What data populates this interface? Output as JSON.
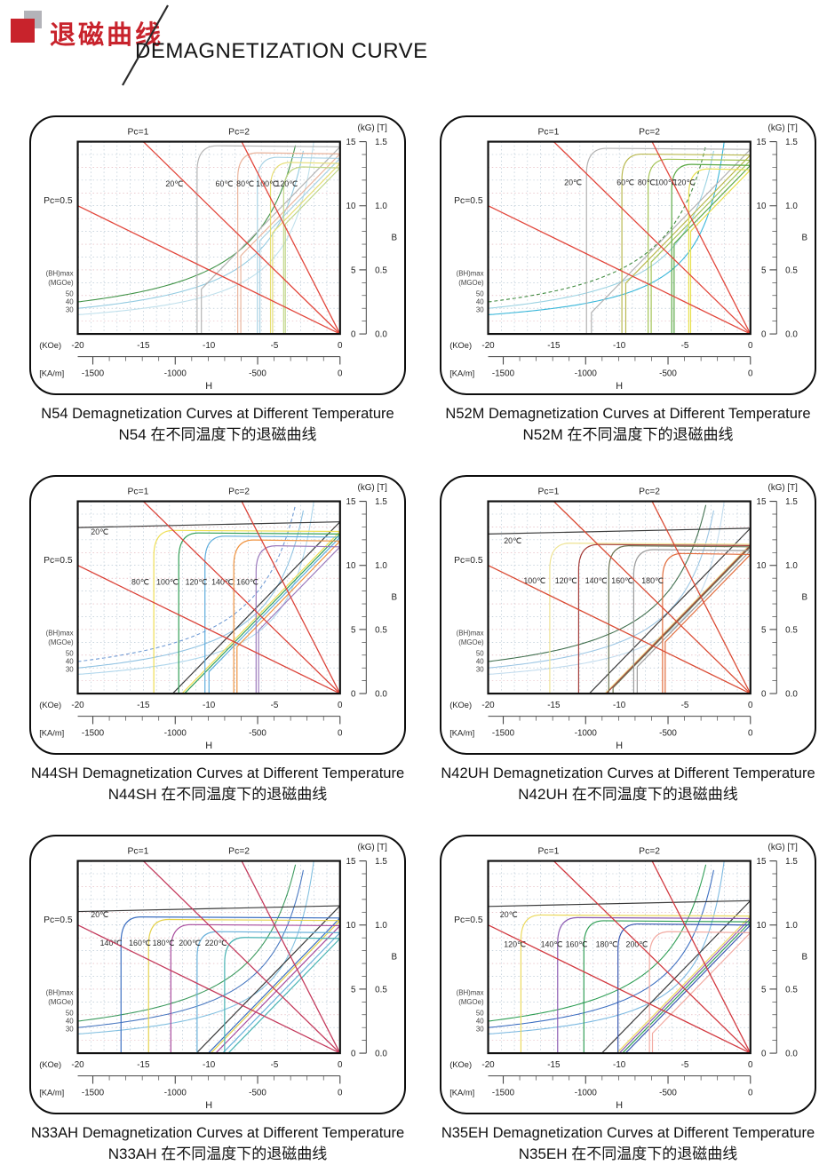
{
  "header": {
    "title_zh": "退磁曲线",
    "title_en": "DEMAGNETIZATION CURVE",
    "brand_red": "#c8232c",
    "logo_shadow_gray": "#b3b3b9"
  },
  "axis": {
    "x_title": "H",
    "y_title": "B",
    "x_unit_primary": "(KOe)",
    "x_unit_secondary": "[KA/m]",
    "y_unit_primary": "(kG)",
    "y_unit_secondary": "[T]",
    "pc_label_05": "Pc=0.5",
    "pc_label_1": "Pc=1",
    "pc_label_2": "Pc=2",
    "bhmax_label_line1": "(BH)max",
    "bhmax_label_line2": "(MGOe)"
  },
  "chart_data": [
    {
      "type": "line",
      "grade": "N54",
      "title": "N54 Demagnetization Curves at Different Temperature",
      "title_zh": "N54 在不同温度下的退磁曲线",
      "xlabel": "H",
      "ylabel": "B",
      "xlim": [
        -20,
        0
      ],
      "ylim": [
        0,
        15
      ],
      "grid": true,
      "x_ticks_koe": [
        -20,
        -15,
        -10,
        -5,
        0
      ],
      "x_ticks_kam": [
        -1500,
        -1000,
        -500,
        0
      ],
      "y_ticks_kg": [
        15,
        10,
        5,
        0
      ],
      "y_ticks_t": [
        "1.5",
        "1.0",
        "0.5",
        "0.0"
      ],
      "pc_lines": [
        0.5,
        1,
        2
      ],
      "pc_color": "#e2463b",
      "bhmax_contours_mgoe": [
        50,
        40,
        30
      ],
      "bhmax_colors": [
        "#3f9246",
        "#93cbe1",
        "#bfe0ec"
      ],
      "bhmax_dash": [
        false,
        false,
        false
      ],
      "series": [
        {
          "label": "20℃",
          "temp_c": 20,
          "color": "#b4b4b4",
          "Br_kG": 14.6,
          "HcJ_kOe": 10.9,
          "label_pos": [
            -13.3,
            11.5
          ]
        },
        {
          "label": "60℃",
          "temp_c": 60,
          "color": "#eab49c",
          "Br_kG": 14.05,
          "HcJ_kOe": 7.8,
          "label_pos": [
            -9.5,
            11.5
          ]
        },
        {
          "label": "80℃",
          "temp_c": 80,
          "color": "#a9d2e4",
          "Br_kG": 13.7,
          "HcJ_kOe": 6.3,
          "label_pos": [
            -7.9,
            11.5
          ]
        },
        {
          "label": "100℃",
          "temp_c": 100,
          "color": "#e6de74",
          "Br_kG": 13.3,
          "HcJ_kOe": 5.3,
          "label_pos": [
            -6.4,
            11.5
          ]
        },
        {
          "label": "120℃",
          "temp_c": 120,
          "color": "#c0d687",
          "Br_kG": 12.95,
          "HcJ_kOe": 4.3,
          "label_pos": [
            -4.9,
            11.5
          ]
        }
      ]
    },
    {
      "type": "line",
      "grade": "N52M",
      "title": "N52M Demagnetization Curves at Different Temperature",
      "title_zh": "N52M 在不同温度下的退磁曲线",
      "xlabel": "H",
      "ylabel": "B",
      "xlim": [
        -20,
        0
      ],
      "ylim": [
        0,
        15
      ],
      "grid": true,
      "x_ticks_koe": [
        -20,
        -15,
        -10,
        -5,
        0
      ],
      "x_ticks_kam": [
        -1500,
        -1000,
        -500,
        0
      ],
      "y_ticks_kg": [
        15,
        10,
        5,
        0
      ],
      "y_ticks_t": [
        "1.5",
        "1.0",
        "0.5",
        "0.0"
      ],
      "pc_lines": [
        0.5,
        1,
        2
      ],
      "pc_color": "#e2463b",
      "bhmax_contours_mgoe": [
        50,
        40,
        30
      ],
      "bhmax_colors": [
        "#3f8a3f",
        "#9ad2e2",
        "#35b5d8"
      ],
      "bhmax_dash": [
        true,
        false,
        false
      ],
      "series": [
        {
          "label": "20℃",
          "temp_c": 20,
          "color": "#b2b2b2",
          "Br_kG": 14.4,
          "HcJ_kOe": 12.5,
          "label_pos": [
            -14.2,
            11.6
          ]
        },
        {
          "label": "60℃",
          "temp_c": 60,
          "color": "#b8b84e",
          "Br_kG": 13.95,
          "HcJ_kOe": 9.8,
          "label_pos": [
            -10.2,
            11.6
          ]
        },
        {
          "label": "80℃",
          "temp_c": 80,
          "color": "#a3c355",
          "Br_kG": 13.55,
          "HcJ_kOe": 7.8,
          "label_pos": [
            -8.6,
            11.6
          ]
        },
        {
          "label": "100℃",
          "temp_c": 100,
          "color": "#5aa844",
          "Br_kG": 13.15,
          "HcJ_kOe": 6.0,
          "label_pos": [
            -7.3,
            11.6
          ]
        },
        {
          "label": "120℃",
          "temp_c": 120,
          "color": "#e7e04e",
          "Br_kG": 12.8,
          "HcJ_kOe": 4.7,
          "label_pos": [
            -5.9,
            11.6
          ]
        }
      ]
    },
    {
      "type": "line",
      "grade": "N44SH",
      "title": "N44SH Demagnetization Curves at Different Temperature",
      "title_zh": "N44SH 在不同温度下的退磁曲线",
      "xlabel": "H",
      "ylabel": "B",
      "xlim": [
        -20,
        0
      ],
      "ylim": [
        0,
        15
      ],
      "grid": true,
      "x_ticks_koe": [
        -20,
        -15,
        -10,
        -5,
        0
      ],
      "x_ticks_kam": [
        -1500,
        -1000,
        -500,
        0
      ],
      "y_ticks_kg": [
        15,
        10,
        5,
        0
      ],
      "y_ticks_t": [
        "1.5",
        "1.0",
        "0.5",
        "0.0"
      ],
      "pc_lines": [
        0.5,
        1,
        2
      ],
      "pc_color": "#db4238",
      "bhmax_contours_mgoe": [
        50,
        40,
        30
      ],
      "bhmax_colors": [
        "#6f9ad4",
        "#8fc2e2",
        "#aed6ec"
      ],
      "bhmax_dash": [
        true,
        false,
        false
      ],
      "series": [
        {
          "label": "20℃",
          "temp_c": 20,
          "color": "#3a3a3a",
          "Br_kG": 13.4,
          "HcJ_kOe": 22,
          "label_pos": [
            -19.0,
            12.4
          ]
        },
        {
          "label": "80℃",
          "temp_c": 80,
          "color": "#eede52",
          "Br_kG": 12.65,
          "HcJ_kOe": 14.2,
          "label_pos": [
            -15.9,
            8.5
          ]
        },
        {
          "label": "100℃",
          "temp_c": 100,
          "color": "#2f9e55",
          "Br_kG": 12.45,
          "HcJ_kOe": 12.3,
          "label_pos": [
            -14.0,
            8.5
          ]
        },
        {
          "label": "120℃",
          "temp_c": 120,
          "color": "#5cacdc",
          "Br_kG": 12.2,
          "HcJ_kOe": 10.3,
          "label_pos": [
            -11.8,
            8.5
          ]
        },
        {
          "label": "140℃",
          "temp_c": 140,
          "color": "#ef9340",
          "Br_kG": 11.9,
          "HcJ_kOe": 8.1,
          "label_pos": [
            -9.8,
            8.5
          ]
        },
        {
          "label": "160℃",
          "temp_c": 160,
          "color": "#9c7abc",
          "Br_kG": 11.45,
          "HcJ_kOe": 6.4,
          "label_pos": [
            -7.9,
            8.5
          ]
        }
      ]
    },
    {
      "type": "line",
      "grade": "N42UH",
      "title": "N42UH Demagnetization Curves at Different Temperature",
      "title_zh": "N42UH 在不同温度下的退磁曲线",
      "xlabel": "H",
      "ylabel": "B",
      "xlim": [
        -20,
        0
      ],
      "ylim": [
        0,
        15
      ],
      "grid": true,
      "x_ticks_koe": [
        -20,
        -15,
        -10,
        -5,
        0
      ],
      "x_ticks_kam": [
        -1500,
        -1000,
        -500,
        0
      ],
      "y_ticks_kg": [
        15,
        10,
        5,
        0
      ],
      "y_ticks_t": [
        "1.5",
        "1.0",
        "0.5",
        "0.0"
      ],
      "pc_lines": [
        0.5,
        1,
        2
      ],
      "pc_color": "#da4a33",
      "bhmax_contours_mgoe": [
        50,
        40,
        30
      ],
      "bhmax_colors": [
        "#41704f",
        "#9cc6e4",
        "#c2dcee"
      ],
      "bhmax_dash": [
        false,
        false,
        false
      ],
      "series": [
        {
          "label": "20℃",
          "temp_c": 20,
          "color": "#3a3a3a",
          "Br_kG": 12.9,
          "HcJ_kOe": 22,
          "label_pos": [
            -18.8,
            11.7
          ]
        },
        {
          "label": "100℃",
          "temp_c": 100,
          "color": "#eee392",
          "Br_kG": 11.65,
          "HcJ_kOe": 15.3,
          "label_pos": [
            -17.3,
            8.6
          ]
        },
        {
          "label": "120℃",
          "temp_c": 120,
          "color": "#a43b38",
          "Br_kG": 11.55,
          "HcJ_kOe": 13.1,
          "label_pos": [
            -14.9,
            8.6
          ]
        },
        {
          "label": "140℃",
          "temp_c": 140,
          "color": "#6b7452",
          "Br_kG": 11.45,
          "HcJ_kOe": 10.8,
          "label_pos": [
            -12.6,
            8.6
          ]
        },
        {
          "label": "160℃",
          "temp_c": 160,
          "color": "#9b9b9b",
          "Br_kG": 11.15,
          "HcJ_kOe": 8.9,
          "label_pos": [
            -10.6,
            8.6
          ]
        },
        {
          "label": "180℃",
          "temp_c": 180,
          "color": "#e16c3c",
          "Br_kG": 10.85,
          "HcJ_kOe": 6.7,
          "label_pos": [
            -8.3,
            8.6
          ]
        }
      ]
    },
    {
      "type": "line",
      "grade": "N33AH",
      "title": "N33AH Demagnetization Curves at Different Temperature",
      "title_zh": "N33AH 在不同温度下的退磁曲线",
      "xlabel": "H",
      "ylabel": "B",
      "xlim": [
        -20,
        0
      ],
      "ylim": [
        0,
        15
      ],
      "grid": true,
      "x_ticks_koe": [
        -20,
        -15,
        -10,
        -5,
        0
      ],
      "x_ticks_kam": [
        -1500,
        -1000,
        -500,
        0
      ],
      "y_ticks_kg": [
        15,
        10,
        5,
        0
      ],
      "y_ticks_t": [
        "1.5",
        "1.0",
        "0.5",
        "0.0"
      ],
      "pc_lines": [
        0.5,
        1,
        2
      ],
      "pc_color": "#c43a5c",
      "bhmax_contours_mgoe": [
        50,
        40,
        30
      ],
      "bhmax_colors": [
        "#3c9a5e",
        "#4a79c1",
        "#82c0e0"
      ],
      "bhmax_dash": [
        false,
        false,
        false
      ],
      "series": [
        {
          "label": "20℃",
          "temp_c": 20,
          "color": "#3a3a3a",
          "Br_kG": 11.5,
          "HcJ_kOe": 22,
          "label_pos": [
            -19.0,
            10.6
          ]
        },
        {
          "label": "140℃",
          "temp_c": 140,
          "color": "#3d6fc1",
          "Br_kG": 10.55,
          "HcJ_kOe": 16.7,
          "label_pos": [
            -18.3,
            8.4
          ]
        },
        {
          "label": "160℃",
          "temp_c": 160,
          "color": "#e5d24c",
          "Br_kG": 10.35,
          "HcJ_kOe": 14.6,
          "label_pos": [
            -16.1,
            8.4
          ]
        },
        {
          "label": "180℃",
          "temp_c": 180,
          "color": "#a84a9c",
          "Br_kG": 9.95,
          "HcJ_kOe": 12.9,
          "label_pos": [
            -14.3,
            8.4
          ]
        },
        {
          "label": "200℃",
          "temp_c": 200,
          "color": "#68b0da",
          "Br_kG": 9.4,
          "HcJ_kOe": 10.9,
          "label_pos": [
            -12.3,
            8.4
          ]
        },
        {
          "label": "220℃",
          "temp_c": 220,
          "color": "#45b2b2",
          "Br_kG": 8.95,
          "HcJ_kOe": 8.8,
          "label_pos": [
            -10.3,
            8.4
          ]
        }
      ]
    },
    {
      "type": "line",
      "grade": "N35EH",
      "title": "N35EH Demagnetization Curves at Different Temperature",
      "title_zh": "N35EH 在不同温度下的退磁曲线",
      "xlabel": "H",
      "ylabel": "B",
      "xlim": [
        -20,
        0
      ],
      "ylim": [
        0,
        15
      ],
      "grid": true,
      "x_ticks_koe": [
        -20,
        -15,
        -10,
        -5,
        0
      ],
      "x_ticks_kam": [
        -1500,
        -1000,
        -500,
        0
      ],
      "y_ticks_kg": [
        15,
        10,
        5,
        0
      ],
      "y_ticks_t": [
        "1.5",
        "1.0",
        "0.5",
        "0.0"
      ],
      "pc_lines": [
        0.5,
        1,
        2
      ],
      "pc_color": "#d2383f",
      "bhmax_contours_mgoe": [
        50,
        40,
        30
      ],
      "bhmax_colors": [
        "#2f9e55",
        "#3d6fc1",
        "#7cb9e1"
      ],
      "bhmax_dash": [
        false,
        false,
        false
      ],
      "series": [
        {
          "label": "20℃",
          "temp_c": 20,
          "color": "#3a3a3a",
          "Br_kG": 11.9,
          "HcJ_kOe": 22,
          "label_pos": [
            -19.1,
            10.6
          ]
        },
        {
          "label": "120℃",
          "temp_c": 120,
          "color": "#ecd95c",
          "Br_kG": 10.7,
          "HcJ_kOe": 17.5,
          "label_pos": [
            -18.8,
            8.3
          ]
        },
        {
          "label": "140℃",
          "temp_c": 140,
          "color": "#8a5ab2",
          "Br_kG": 10.5,
          "HcJ_kOe": 14.7,
          "label_pos": [
            -16.0,
            8.3
          ]
        },
        {
          "label": "160℃",
          "temp_c": 160,
          "color": "#2f9e55",
          "Br_kG": 10.25,
          "HcJ_kOe": 12.7,
          "label_pos": [
            -14.1,
            8.3
          ]
        },
        {
          "label": "180℃",
          "temp_c": 180,
          "color": "#3a58b2",
          "Br_kG": 10.0,
          "HcJ_kOe": 10.1,
          "label_pos": [
            -11.8,
            8.3
          ]
        },
        {
          "label": "200℃",
          "temp_c": 200,
          "color": "#f2aaa2",
          "Br_kG": 9.4,
          "HcJ_kOe": 7.7,
          "label_pos": [
            -9.5,
            8.3
          ]
        }
      ]
    }
  ]
}
